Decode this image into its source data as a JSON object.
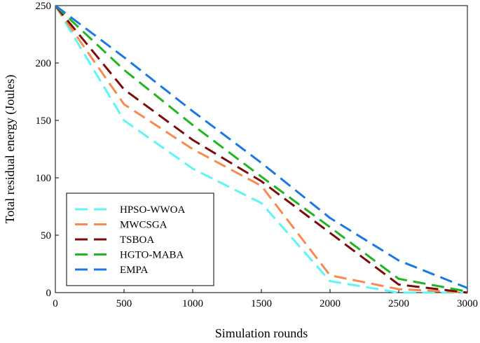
{
  "chart_data": {
    "type": "line",
    "title": "",
    "xlabel": "Simulation rounds",
    "ylabel": "Total residual energy (Joules)",
    "xlim": [
      0,
      3000
    ],
    "ylim": [
      0,
      250
    ],
    "xticks": [
      0,
      500,
      1000,
      1500,
      2000,
      2500,
      3000
    ],
    "yticks": [
      0,
      50,
      100,
      150,
      200,
      250
    ],
    "grid": false,
    "legend_position": "lower-left",
    "x": [
      0,
      500,
      1000,
      1500,
      2000,
      2500,
      3000
    ],
    "series": [
      {
        "name": "HPSO-WWOA",
        "color": "#5ff5f5",
        "values": [
          250,
          150,
          108,
          78,
          10,
          0,
          0
        ]
      },
      {
        "name": "MWCSGA",
        "color": "#f78a50",
        "values": [
          250,
          164,
          125,
          93,
          15,
          3,
          0
        ]
      },
      {
        "name": "TSBOA",
        "color": "#7b0c0c",
        "values": [
          250,
          177,
          133,
          97,
          52,
          7,
          0
        ]
      },
      {
        "name": "HGTO-MABA",
        "color": "#22b522",
        "values": [
          250,
          194,
          146,
          101,
          57,
          12,
          1
        ]
      },
      {
        "name": "EMPA",
        "color": "#1a78e6",
        "values": [
          250,
          205,
          158,
          113,
          65,
          28,
          4
        ]
      }
    ]
  }
}
